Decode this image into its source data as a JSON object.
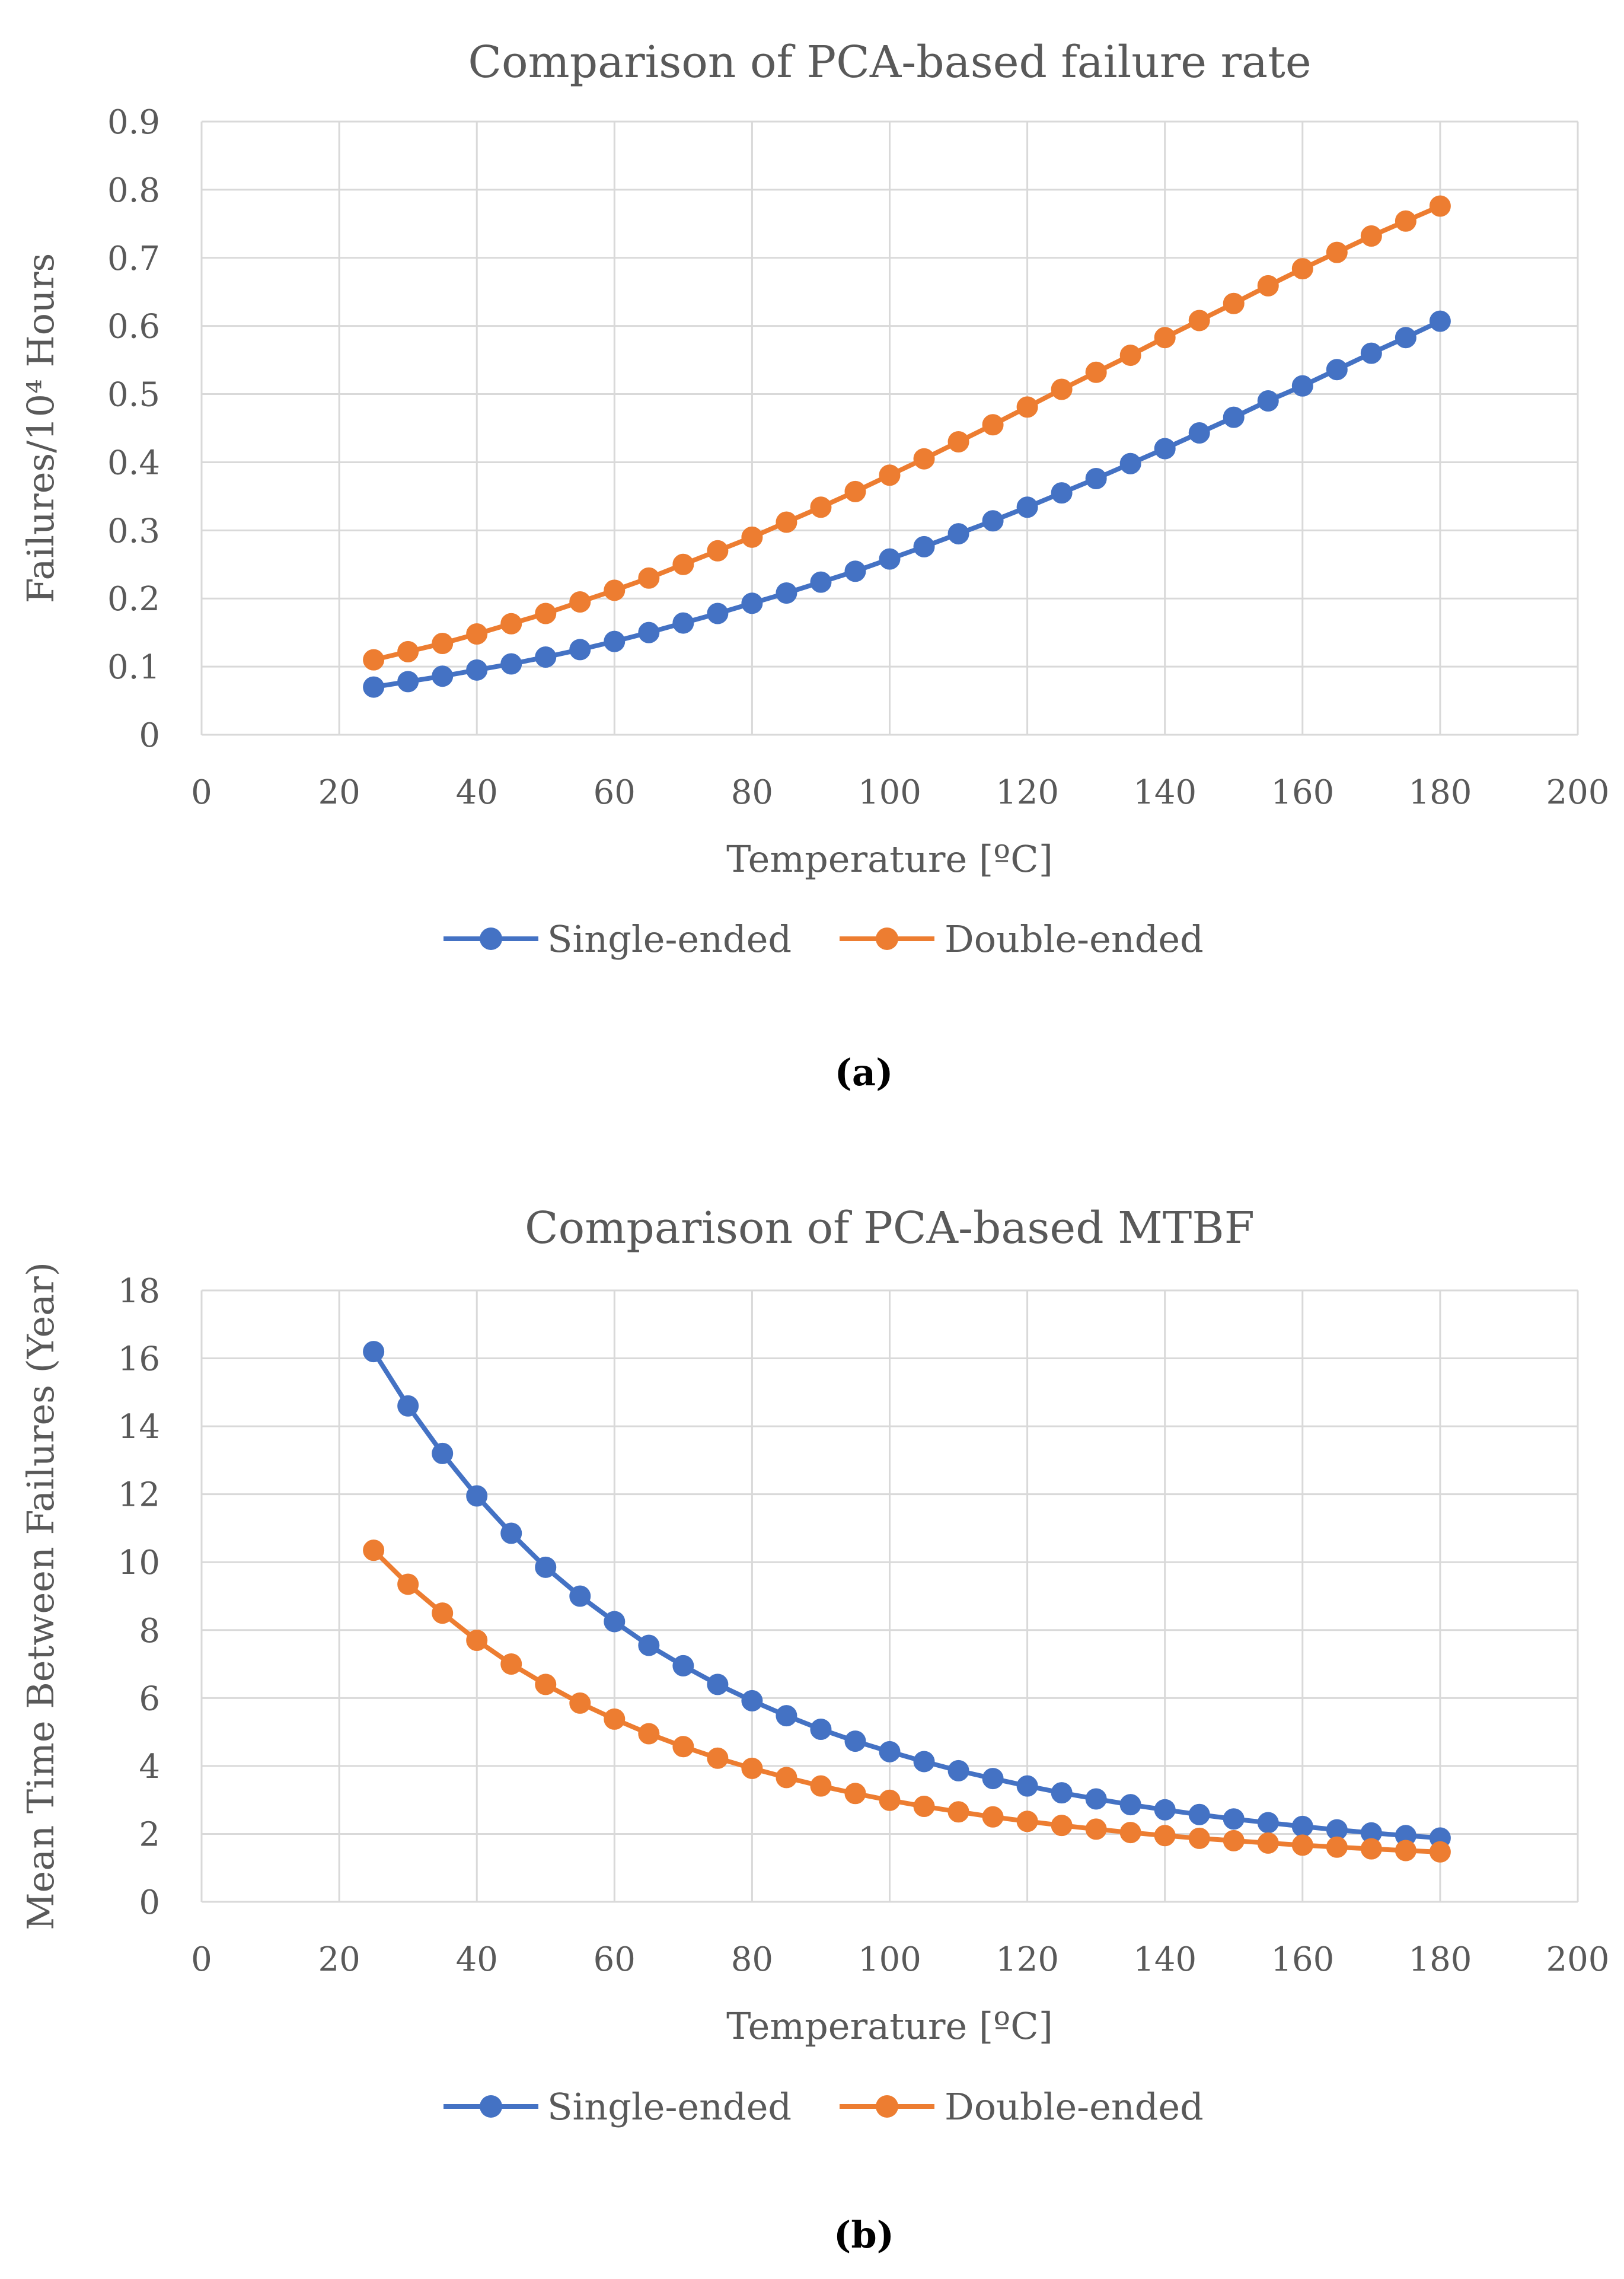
{
  "colors": {
    "single": "#4472C4",
    "double": "#ED7D31",
    "grid": "#D9D9D9",
    "text": "#595959"
  },
  "panels": [
    {
      "label": "(a)"
    },
    {
      "label": "(b)"
    }
  ],
  "chart_data": [
    {
      "type": "line",
      "title": "Comparison of PCA-based failure rate",
      "xlabel": "Temperature [ºC]",
      "ylabel": "Failures/10⁴ Hours",
      "xlim": [
        0,
        200
      ],
      "ylim": [
        0,
        0.9
      ],
      "xticks": [
        "0",
        "20",
        "40",
        "60",
        "80",
        "100",
        "120",
        "140",
        "160",
        "180",
        "200"
      ],
      "yticks": [
        "0",
        "0.1",
        "0.2",
        "0.3",
        "0.4",
        "0.5",
        "0.6",
        "0.7",
        "0.8",
        "0.9"
      ],
      "grid": true,
      "legend": "bottom",
      "x": [
        25,
        30,
        35,
        40,
        45,
        50,
        55,
        60,
        65,
        70,
        75,
        80,
        85,
        90,
        95,
        100,
        105,
        110,
        115,
        120,
        125,
        130,
        135,
        140,
        145,
        150,
        155,
        160,
        165,
        170,
        175,
        180
      ],
      "series": [
        {
          "name": "Single-ended",
          "values": [
            0.07,
            0.078,
            0.086,
            0.095,
            0.104,
            0.114,
            0.125,
            0.137,
            0.15,
            0.164,
            0.178,
            0.193,
            0.208,
            0.224,
            0.24,
            0.258,
            0.276,
            0.295,
            0.314,
            0.334,
            0.355,
            0.376,
            0.398,
            0.42,
            0.443,
            0.466,
            0.49,
            0.512,
            0.536,
            0.56,
            0.583,
            0.607
          ]
        },
        {
          "name": "Double-ended",
          "values": [
            0.11,
            0.122,
            0.134,
            0.148,
            0.163,
            0.178,
            0.195,
            0.212,
            0.23,
            0.25,
            0.27,
            0.29,
            0.312,
            0.334,
            0.357,
            0.381,
            0.405,
            0.43,
            0.455,
            0.481,
            0.507,
            0.532,
            0.557,
            0.583,
            0.608,
            0.633,
            0.659,
            0.684,
            0.708,
            0.732,
            0.754,
            0.776
          ]
        }
      ]
    },
    {
      "type": "line",
      "title": "Comparison of PCA-based MTBF",
      "xlabel": "Temperature [ºC]",
      "ylabel": "Mean Time Between Failures (Year)",
      "xlim": [
        0,
        200
      ],
      "ylim": [
        0,
        18
      ],
      "xticks": [
        "0",
        "20",
        "40",
        "60",
        "80",
        "100",
        "120",
        "140",
        "160",
        "180",
        "200"
      ],
      "yticks": [
        "0",
        "2",
        "4",
        "6",
        "8",
        "10",
        "12",
        "14",
        "16",
        "18"
      ],
      "grid": true,
      "legend": "bottom",
      "x": [
        25,
        30,
        35,
        40,
        45,
        50,
        55,
        60,
        65,
        70,
        75,
        80,
        85,
        90,
        95,
        100,
        105,
        110,
        115,
        120,
        125,
        130,
        135,
        140,
        145,
        150,
        155,
        160,
        165,
        170,
        175,
        180
      ],
      "series": [
        {
          "name": "Single-ended",
          "values": [
            16.2,
            14.6,
            13.2,
            11.95,
            10.85,
            9.85,
            9.0,
            8.25,
            7.55,
            6.95,
            6.4,
            5.92,
            5.48,
            5.08,
            4.73,
            4.42,
            4.13,
            3.86,
            3.63,
            3.41,
            3.21,
            3.03,
            2.86,
            2.71,
            2.57,
            2.44,
            2.33,
            2.22,
            2.12,
            2.03,
            1.95,
            1.88
          ]
        },
        {
          "name": "Double-ended",
          "values": [
            10.35,
            9.35,
            8.5,
            7.7,
            7.0,
            6.4,
            5.85,
            5.38,
            4.95,
            4.57,
            4.23,
            3.93,
            3.66,
            3.41,
            3.19,
            2.99,
            2.81,
            2.65,
            2.5,
            2.37,
            2.25,
            2.14,
            2.04,
            1.95,
            1.87,
            1.8,
            1.73,
            1.67,
            1.61,
            1.56,
            1.51,
            1.47
          ]
        }
      ]
    }
  ]
}
